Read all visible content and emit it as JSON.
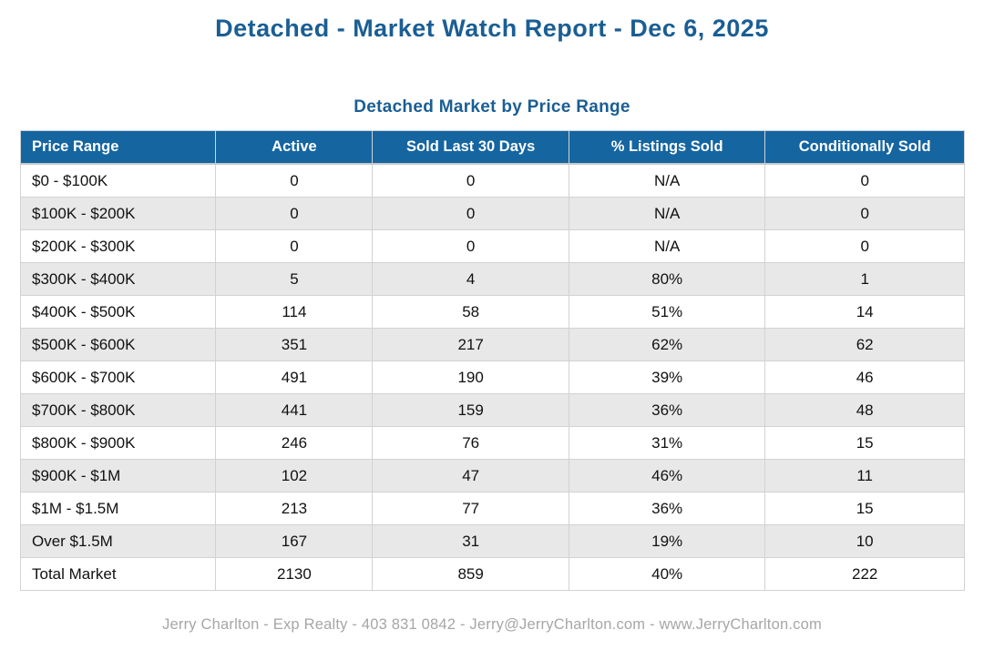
{
  "page": {
    "title": "Detached - Market Watch Report - Dec 6, 2025",
    "footer": "Jerry Charlton - Exp Realty - 403 831 0842 - Jerry@JerryCharlton.com - www.JerryCharlton.com"
  },
  "table": {
    "title": "Detached Market by Price Range",
    "columns": [
      "Price Range",
      "Active",
      "Sold Last 30 Days",
      "% Listings Sold",
      "Conditionally Sold"
    ],
    "rows": [
      [
        "$0 - $100K",
        "0",
        "0",
        "N/A",
        "0"
      ],
      [
        "$100K - $200K",
        "0",
        "0",
        "N/A",
        "0"
      ],
      [
        "$200K - $300K",
        "0",
        "0",
        "N/A",
        "0"
      ],
      [
        "$300K - $400K",
        "5",
        "4",
        "80%",
        "1"
      ],
      [
        "$400K - $500K",
        "114",
        "58",
        "51%",
        "14"
      ],
      [
        "$500K - $600K",
        "351",
        "217",
        "62%",
        "62"
      ],
      [
        "$600K - $700K",
        "491",
        "190",
        "39%",
        "46"
      ],
      [
        "$700K - $800K",
        "441",
        "159",
        "36%",
        "48"
      ],
      [
        "$800K - $900K",
        "246",
        "76",
        "31%",
        "15"
      ],
      [
        "$900K - $1M",
        "102",
        "47",
        "46%",
        "11"
      ],
      [
        "$1M - $1.5M",
        "213",
        "77",
        "36%",
        "15"
      ],
      [
        "Over $1.5M",
        "167",
        "31",
        "19%",
        "10"
      ],
      [
        "Total Market",
        "2130",
        "859",
        "40%",
        "222"
      ]
    ]
  },
  "colors": {
    "accent_blue": "#1a5e94",
    "header_bg": "#1565a0",
    "row_alt_bg": "#e8e8e8",
    "border": "#d2d2d2",
    "footer_text": "#a6a6a6"
  }
}
